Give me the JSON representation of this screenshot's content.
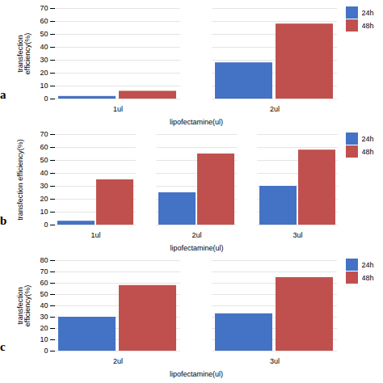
{
  "chart_data": [
    {
      "type": "bar",
      "annotations": [
        "a"
      ],
      "categories": [
        "1ul",
        "2ul"
      ],
      "series": [
        {
          "name": "24h",
          "color": "#4472C4",
          "values": [
            2,
            28
          ]
        },
        {
          "name": "48h",
          "color": "#C0504D",
          "values": [
            6,
            58
          ]
        }
      ],
      "xlabel": "lipofectamine(ul)",
      "ylabel": "transfection\nefficiency(%)",
      "ylim": [
        0,
        70
      ],
      "yticks": [
        0,
        10,
        20,
        30,
        40,
        50,
        60,
        70
      ],
      "grid": true,
      "legend": "upper right"
    },
    {
      "type": "bar",
      "annotations": [
        "b"
      ],
      "categories": [
        "1ul",
        "2ul",
        "3ul"
      ],
      "series": [
        {
          "name": "24h",
          "color": "#4472C4",
          "values": [
            3,
            25,
            30
          ]
        },
        {
          "name": "48h",
          "color": "#C0504D",
          "values": [
            35,
            55,
            58
          ]
        }
      ],
      "xlabel": "lipofectamine(ul)",
      "ylabel": "transfection efficiency(%)",
      "ylim": [
        0,
        70
      ],
      "yticks": [
        0,
        10,
        20,
        30,
        40,
        50,
        60,
        70
      ],
      "grid": true,
      "legend": "upper right"
    },
    {
      "type": "bar",
      "annotations": [
        "c"
      ],
      "categories": [
        "2ul",
        "3ul"
      ],
      "series": [
        {
          "name": "24h",
          "color": "#4472C4",
          "values": [
            30,
            33
          ]
        },
        {
          "name": "48h",
          "color": "#C0504D",
          "values": [
            58,
            65
          ]
        }
      ],
      "xlabel": "lipofectamine(ul)",
      "ylabel": "transfection\nefficiency(%)",
      "ylim": [
        0,
        80
      ],
      "yticks": [
        0,
        10,
        20,
        30,
        40,
        50,
        60,
        70,
        80
      ],
      "grid": true,
      "legend": "upper right"
    }
  ]
}
